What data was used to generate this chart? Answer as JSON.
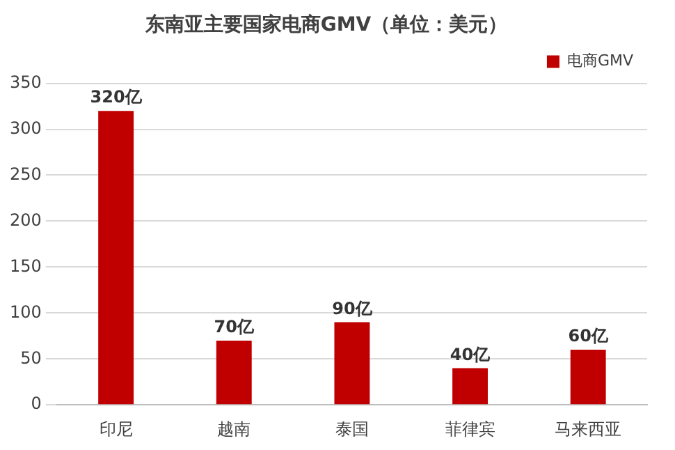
{
  "chart_data": {
    "type": "bar",
    "title": "东南亚主要国家电商GMV（单位：美元）",
    "categories": [
      "印尼",
      "越南",
      "泰国",
      "菲律宾",
      "马来西亚"
    ],
    "series": [
      {
        "name": "电商GMV",
        "color": "#c00000",
        "values": [
          320,
          70,
          90,
          40,
          60
        ],
        "value_labels": [
          "320亿",
          "70亿",
          "90亿",
          "40亿",
          "60亿"
        ]
      }
    ],
    "ylim": [
      0,
      350
    ],
    "yticks": [
      0,
      50,
      100,
      150,
      200,
      250,
      300,
      350
    ],
    "grid": "y",
    "legend": "top right"
  }
}
